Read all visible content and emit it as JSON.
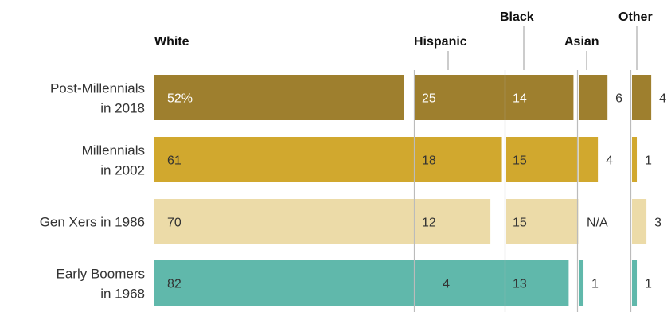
{
  "chart_data": {
    "type": "bar",
    "orientation": "horizontal",
    "layout": "small-multiples",
    "categories": [
      "Post-Millennials\nin 2018",
      "Millennials\nin 2002",
      "Gen Xers in 1986",
      "Early Boomers\nin 1968"
    ],
    "series": [
      {
        "name": "White",
        "values": [
          52,
          61,
          70,
          82
        ],
        "labels": [
          "52%",
          "61",
          "70",
          "82"
        ]
      },
      {
        "name": "Hispanic",
        "values": [
          25,
          18,
          12,
          4
        ],
        "labels": [
          "25",
          "18",
          "12",
          "4"
        ]
      },
      {
        "name": "Black",
        "values": [
          14,
          15,
          15,
          13
        ],
        "labels": [
          "14",
          "15",
          "15",
          "13"
        ]
      },
      {
        "name": "Asian",
        "values": [
          6,
          4,
          null,
          1
        ],
        "labels": [
          "6",
          "4",
          "N/A",
          "1"
        ]
      },
      {
        "name": "Other",
        "values": [
          4,
          1,
          3,
          1
        ],
        "labels": [
          "4",
          "1",
          "3",
          "1"
        ]
      }
    ],
    "row_colors": [
      "#9e7f2e",
      "#d1a82e",
      "#ecdba8",
      "#60b8ab"
    ],
    "value_text_colors": [
      "#ffffff",
      "#333333",
      "#333333",
      "#333333"
    ],
    "axis_line_color": "#bbbbbb",
    "grid": false,
    "legend": "none",
    "title": "",
    "xlabel": "",
    "ylabel": ""
  }
}
